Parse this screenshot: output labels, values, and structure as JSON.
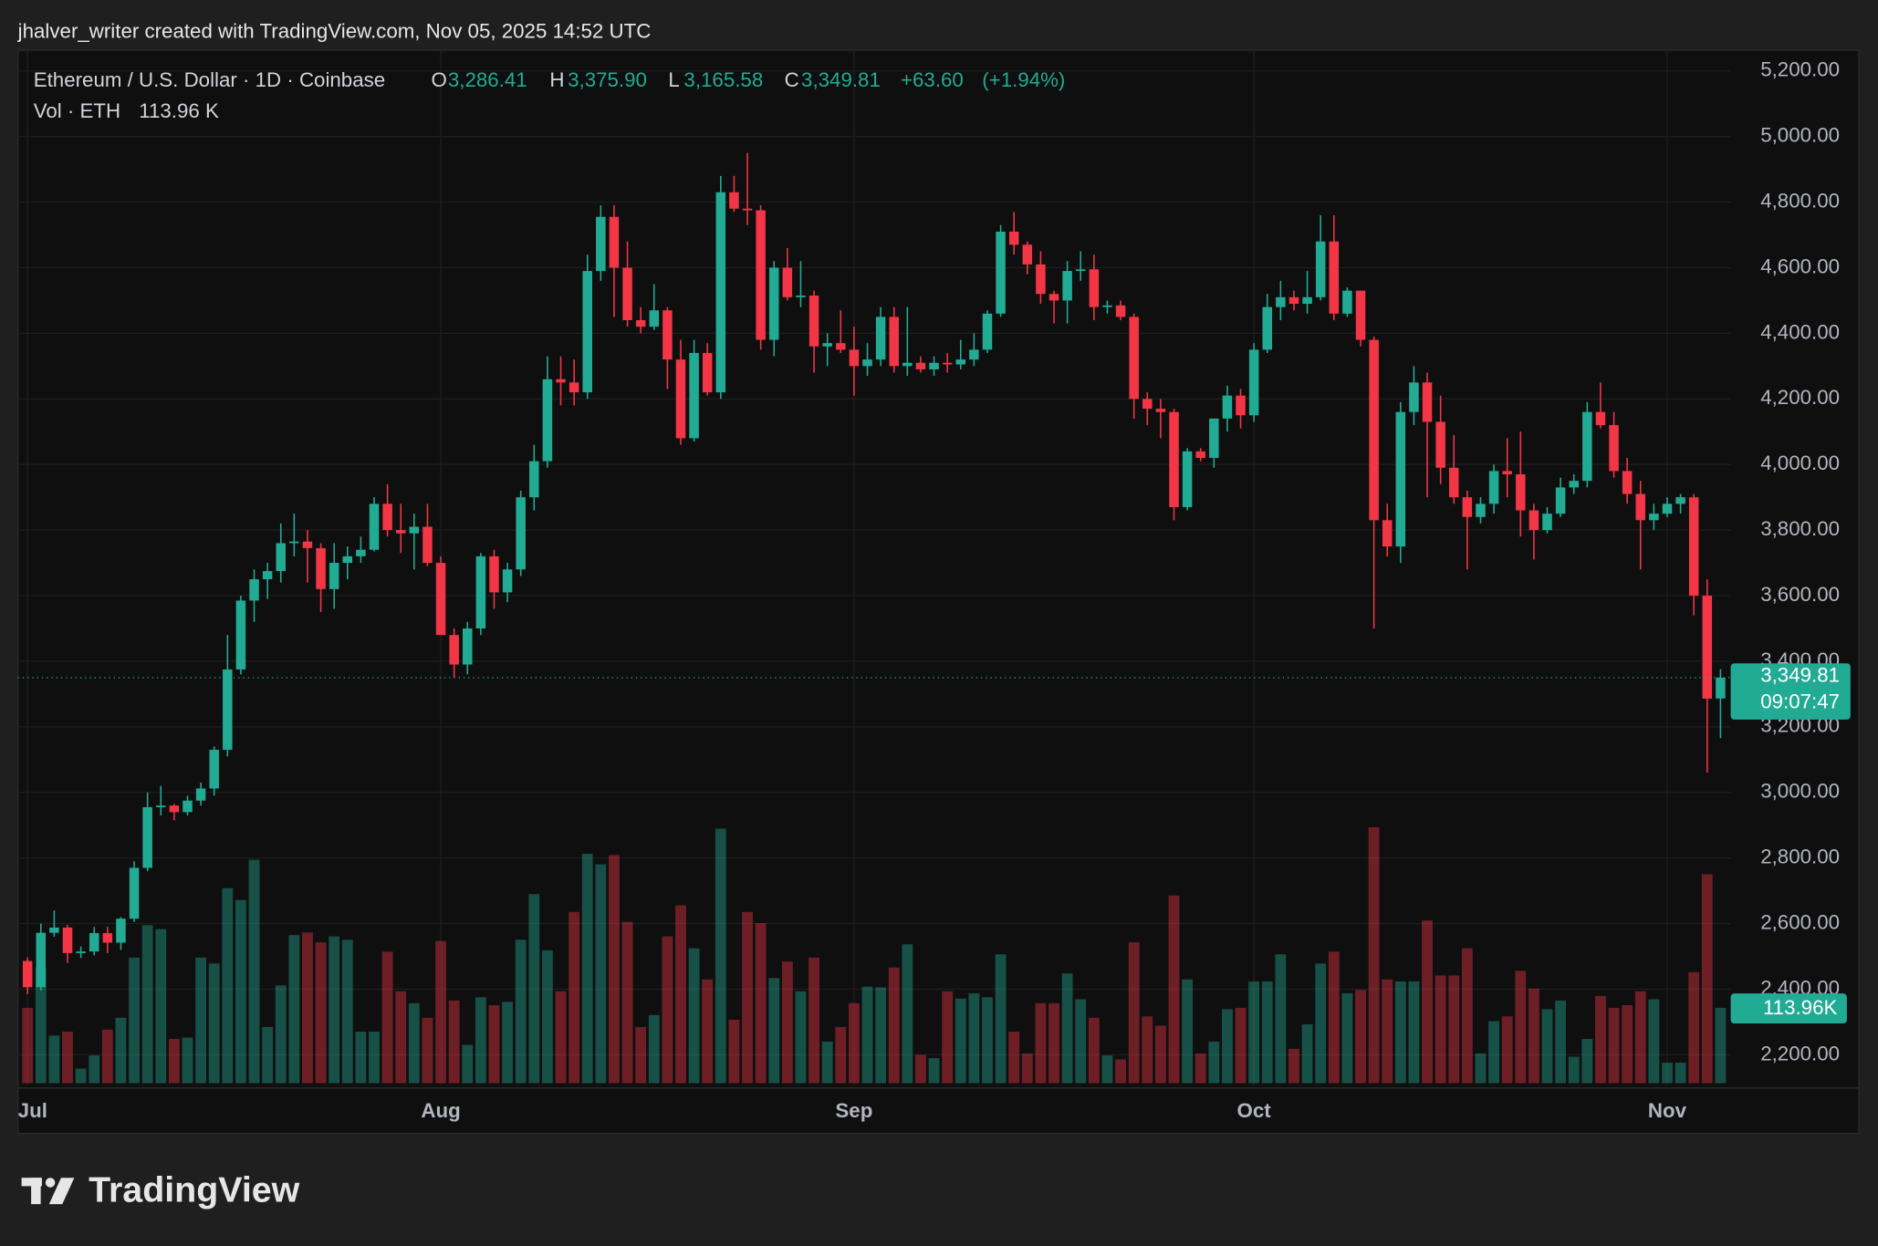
{
  "header": "jhalver_writer created with TradingView.com, Nov 05, 2025 14:52 UTC",
  "footer": {
    "logo": "TradingView"
  },
  "chart_data": {
    "type": "candlestick",
    "symbol": "Ethereum / U.S. Dollar · 1D · Coinbase",
    "up_color": "#22ab94",
    "down_color": "#f23645",
    "grid": true,
    "categories": [
      "Jul",
      null,
      null,
      null,
      null,
      null,
      null,
      null,
      null,
      null,
      null,
      null,
      null,
      null,
      null,
      null,
      null,
      null,
      null,
      null,
      null,
      null,
      null,
      null,
      null,
      null,
      null,
      null,
      null,
      null,
      null,
      "Aug",
      null,
      null,
      null,
      null,
      null,
      null,
      null,
      null,
      null,
      null,
      null,
      null,
      null,
      null,
      null,
      null,
      null,
      null,
      null,
      null,
      null,
      null,
      null,
      null,
      null,
      null,
      null,
      null,
      null,
      null,
      "Sep",
      null,
      null,
      null,
      null,
      null,
      null,
      null,
      null,
      null,
      null,
      null,
      null,
      null,
      null,
      null,
      null,
      null,
      null,
      null,
      null,
      null,
      null,
      null,
      null,
      null,
      null,
      null,
      null,
      null,
      "Oct",
      null,
      null,
      null,
      null,
      null,
      null,
      null,
      null,
      null,
      null,
      null,
      null,
      null,
      null,
      null,
      null,
      null,
      null,
      null,
      null,
      null,
      null,
      null,
      null,
      null,
      null,
      null,
      null,
      null,
      null,
      "Nov",
      null,
      null,
      null,
      null
    ],
    "open": [
      2486,
      2406,
      2572,
      2588,
      2510,
      2515,
      2571,
      2542,
      2615,
      2770,
      2955,
      2960,
      2940,
      2975,
      3012,
      3130,
      3375,
      3585,
      3650,
      3675,
      3760,
      3765,
      3745,
      3620,
      3700,
      3720,
      3740,
      3880,
      3800,
      3790,
      3810,
      3700,
      3480,
      3390,
      3500,
      3720,
      3610,
      3680,
      3900,
      4010,
      4260,
      4250,
      4220,
      4590,
      4755,
      4600,
      4440,
      4420,
      4470,
      4320,
      4080,
      4340,
      4220,
      4830,
      4780,
      4775,
      4380,
      4600,
      4510,
      4515,
      4360,
      4370,
      4350,
      4300,
      4320,
      4450,
      4300,
      4310,
      4290,
      4310,
      4305,
      4320,
      4350,
      4460,
      4710,
      4670,
      4610,
      4520,
      4500,
      4590,
      4595,
      4480,
      4485,
      4450,
      4200,
      4170,
      4160,
      3870,
      4040,
      4020,
      4140,
      4210,
      4150,
      4350,
      4480,
      4510,
      4490,
      4510,
      4680,
      4460,
      4530,
      4380,
      3830,
      3750,
      4160,
      4250,
      4130,
      3990,
      3900,
      3840,
      3880,
      3980,
      3970,
      3860,
      3800,
      3850,
      3930,
      3950,
      4160,
      4120,
      3980,
      3910,
      3830,
      3850,
      3880,
      3900,
      3600,
      3286.41
    ],
    "high": [
      2497,
      2600,
      2640,
      2596,
      2530,
      2590,
      2590,
      2620,
      2790,
      3000,
      3020,
      2965,
      2990,
      3030,
      3140,
      3480,
      3600,
      3680,
      3700,
      3820,
      3850,
      3800,
      3760,
      3760,
      3750,
      3780,
      3900,
      3940,
      3880,
      3850,
      3880,
      3720,
      3500,
      3520,
      3730,
      3740,
      3700,
      3920,
      4060,
      4330,
      4330,
      4320,
      4640,
      4790,
      4790,
      4680,
      4480,
      4550,
      4480,
      4380,
      4380,
      4370,
      4880,
      4880,
      4950,
      4790,
      4620,
      4660,
      4620,
      4530,
      4400,
      4470,
      4420,
      4370,
      4480,
      4480,
      4480,
      4330,
      4330,
      4340,
      4380,
      4400,
      4470,
      4730,
      4770,
      4680,
      4650,
      4530,
      4620,
      4650,
      4640,
      4500,
      4500,
      4460,
      4220,
      4200,
      4170,
      4050,
      4050,
      4140,
      4240,
      4230,
      4370,
      4520,
      4560,
      4530,
      4590,
      4760,
      4760,
      4540,
      4530,
      4390,
      3880,
      4190,
      4300,
      4280,
      4210,
      4090,
      3920,
      3900,
      4000,
      4080,
      4100,
      3880,
      3870,
      3960,
      3970,
      4190,
      4250,
      4160,
      4020,
      3950,
      3880,
      3900,
      3910,
      3910,
      3650,
      3375.9
    ],
    "low": [
      2385,
      2396,
      2560,
      2480,
      2495,
      2503,
      2510,
      2520,
      2605,
      2760,
      2930,
      2915,
      2930,
      2960,
      2990,
      3110,
      3360,
      3520,
      3590,
      3640,
      3720,
      3640,
      3550,
      3560,
      3650,
      3700,
      3735,
      3780,
      3730,
      3680,
      3690,
      3480,
      3350,
      3360,
      3480,
      3560,
      3580,
      3660,
      3860,
      3990,
      4180,
      4180,
      4200,
      4560,
      4450,
      4420,
      4400,
      4410,
      4230,
      4060,
      4070,
      4210,
      4200,
      4770,
      4730,
      4350,
      4330,
      4500,
      4480,
      4280,
      4300,
      4340,
      4210,
      4270,
      4300,
      4280,
      4270,
      4280,
      4270,
      4280,
      4290,
      4300,
      4340,
      4450,
      4640,
      4580,
      4490,
      4430,
      4430,
      4560,
      4440,
      4460,
      4440,
      4140,
      4120,
      4080,
      3830,
      3860,
      4010,
      3990,
      4100,
      4110,
      4130,
      4340,
      4440,
      4470,
      4460,
      4500,
      4440,
      4450,
      4360,
      3500,
      3720,
      3700,
      4120,
      3900,
      3940,
      3880,
      3680,
      3820,
      3850,
      3900,
      3780,
      3710,
      3790,
      3840,
      3910,
      3930,
      4110,
      3960,
      3880,
      3680,
      3800,
      3840,
      3850,
      3540,
      3060,
      3165.58
    ],
    "close": [
      2406,
      2572,
      2588,
      2510,
      2515,
      2571,
      2542,
      2615,
      2770,
      2955,
      2960,
      2940,
      2975,
      3012,
      3130,
      3375,
      3585,
      3650,
      3675,
      3760,
      3765,
      3745,
      3620,
      3700,
      3720,
      3740,
      3880,
      3800,
      3790,
      3810,
      3700,
      3480,
      3390,
      3500,
      3720,
      3610,
      3680,
      3900,
      4010,
      4260,
      4250,
      4220,
      4590,
      4755,
      4600,
      4440,
      4420,
      4470,
      4320,
      4080,
      4340,
      4220,
      4830,
      4780,
      4775,
      4380,
      4600,
      4510,
      4515,
      4360,
      4370,
      4350,
      4300,
      4320,
      4450,
      4300,
      4310,
      4290,
      4310,
      4305,
      4320,
      4350,
      4460,
      4710,
      4670,
      4610,
      4520,
      4500,
      4590,
      4595,
      4480,
      4485,
      4450,
      4200,
      4170,
      4160,
      3870,
      4040,
      4020,
      4140,
      4210,
      4150,
      4350,
      4480,
      4510,
      4490,
      4510,
      4680,
      4460,
      4530,
      4380,
      3830,
      3750,
      4160,
      4250,
      4130,
      3990,
      3900,
      3840,
      3880,
      3980,
      3970,
      3860,
      3800,
      3850,
      3930,
      3950,
      4160,
      4120,
      3980,
      3910,
      3830,
      3850,
      3880,
      3900,
      3600,
      3286,
      3349.81
    ],
    "volume": [
      114,
      175,
      72,
      78,
      22,
      42,
      81,
      99,
      190,
      239,
      233,
      67,
      69,
      190,
      181,
      295,
      277,
      338,
      85,
      148,
      224,
      228,
      213,
      222,
      217,
      78,
      78,
      199,
      139,
      121,
      99,
      215,
      125,
      58,
      130,
      118,
      123,
      217,
      286,
      201,
      139,
      259,
      347,
      331,
      345,
      244,
      85,
      103,
      222,
      269,
      204,
      157,
      385,
      96,
      259,
      242,
      159,
      184,
      139,
      190,
      63,
      85,
      121,
      146,
      145,
      175,
      210,
      43,
      38,
      139,
      128,
      136,
      130,
      195,
      78,
      45,
      121,
      121,
      166,
      127,
      99,
      42,
      36,
      213,
      101,
      87,
      284,
      157,
      45,
      63,
      112,
      114,
      154,
      154,
      195,
      52,
      89,
      181,
      199,
      136,
      141,
      387,
      157,
      154,
      154,
      246,
      163,
      163,
      204,
      45,
      94,
      101,
      170,
      143,
      112,
      125,
      40,
      67,
      132,
      114,
      118,
      139,
      127,
      31,
      31,
      168,
      316,
      113.96
    ],
    "ylim": [
      2106,
      5263
    ],
    "volume_ylim": [
      0,
      400
    ],
    "yticks": [
      {
        "value": 2200,
        "label": "2,200.00"
      },
      {
        "value": 2400,
        "label": "2,400.00"
      },
      {
        "value": 2600,
        "label": "2,600.00"
      },
      {
        "value": 2800,
        "label": "2,800.00"
      },
      {
        "value": 3000,
        "label": "3,000.00"
      },
      {
        "value": 3200,
        "label": "3,200.00"
      },
      {
        "value": 3400,
        "label": "3,400.00"
      },
      {
        "value": 3600,
        "label": "3,600.00"
      },
      {
        "value": 3800,
        "label": "3,800.00"
      },
      {
        "value": 4000,
        "label": "4,000.00"
      },
      {
        "value": 4200,
        "label": "4,200.00"
      },
      {
        "value": 4400,
        "label": "4,400.00"
      },
      {
        "value": 4600,
        "label": "4,600.00"
      },
      {
        "value": 4800,
        "label": "4,800.00"
      },
      {
        "value": 5000,
        "label": "5,000.00"
      },
      {
        "value": 5200,
        "label": "5,200.00"
      }
    ],
    "ohlc_legend": [
      {
        "key": "O",
        "value": 3286.41,
        "label": "3,286.41"
      },
      {
        "key": "H",
        "value": 3375.9,
        "label": "3,375.90"
      },
      {
        "key": "L",
        "value": 3165.58,
        "label": "3,165.58"
      },
      {
        "key": "C",
        "value": 3349.81,
        "label": "3,349.81"
      }
    ],
    "change": {
      "value": 63.6,
      "label": "+63.60"
    },
    "change_pct": {
      "value": 1.94,
      "label": "(+1.94%)"
    },
    "volume_legend": {
      "name": "Vol · ETH",
      "value": 113.96,
      "label": "113.96 K"
    },
    "last_price": {
      "value": 3349.81,
      "label": "3,349.81"
    },
    "countdown": "09:07:47",
    "last_volume": {
      "value": 113.96,
      "label": "113.96K"
    }
  }
}
